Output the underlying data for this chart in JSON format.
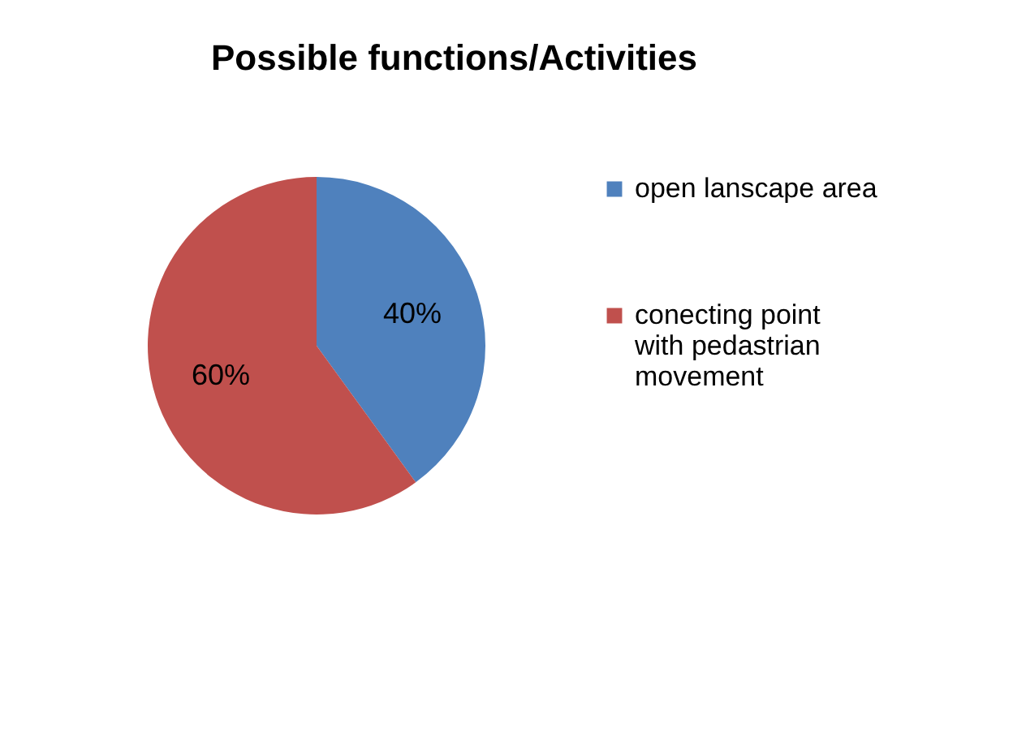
{
  "chart_data": {
    "type": "pie",
    "title": "Possible functions/Activities",
    "categories": [
      "open lanscape area",
      "conecting point with pedastrian movement"
    ],
    "values": [
      40,
      60
    ],
    "colors": [
      "#4f81bd",
      "#c0504d"
    ],
    "value_labels": [
      "40%",
      "60%"
    ],
    "legend": "right"
  }
}
